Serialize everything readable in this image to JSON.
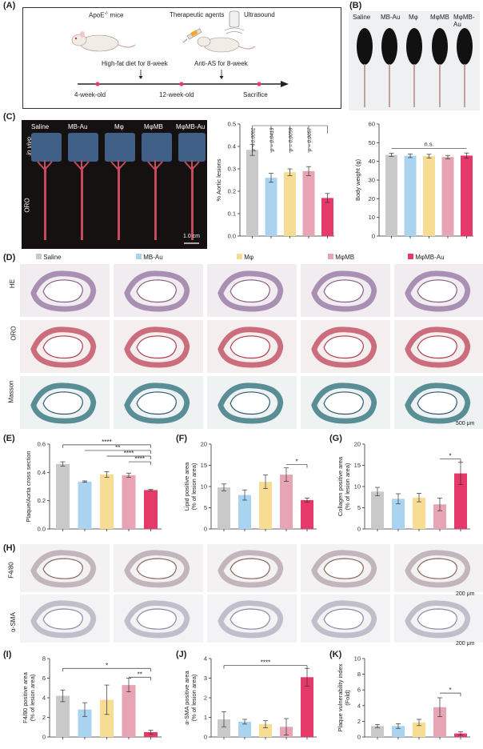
{
  "panels": {
    "A": "(A)",
    "B": "(B)",
    "C": "(C)",
    "D": "(D)",
    "E": "(E)",
    "F": "(F)",
    "G": "(G)",
    "H": "(H)",
    "I": "(I)",
    "J": "(J)",
    "K": "(K)"
  },
  "groups": [
    "Saline",
    "MB-Au",
    "Mφ",
    "MφMB",
    "MφMB-Au"
  ],
  "colors": {
    "Saline": "#c9c9c9",
    "MB-Au": "#a9d3ef",
    "Mφ": "#f7dc93",
    "MφMB": "#e7a4b4",
    "MφMB-Au": "#e5396a"
  },
  "panelA": {
    "mice_label": "ApoE",
    "mice_sup": "-/-",
    "mice_suffix": " mice",
    "agents_label": "Therapeutic agents",
    "ultrasound_label": "Ultrasound",
    "hfd_label": "High-fat diet for 8-week",
    "antias_label": "Anti-AS for 8-week",
    "time_labels": [
      "4-week-old",
      "12-week-old",
      "Sacrifice"
    ]
  },
  "panelB": {
    "labels": [
      "Saline",
      "MB-Au",
      "Mφ",
      "MφMB",
      "MφMB-Au"
    ]
  },
  "panelC": {
    "labels": [
      "Saline",
      "MB-Au",
      "Mφ",
      "MφMB",
      "MφMB-Au"
    ],
    "row_invivo": "in vivo",
    "row_oro": "ORO",
    "scale": "1.0 cm"
  },
  "panelD": {
    "legend": [
      "Saline",
      "MB-Au",
      "Mφ",
      "MφMB",
      "MφMB-Au"
    ],
    "rows": [
      "HE",
      "ORO",
      "Masson"
    ],
    "scale": "500 μm"
  },
  "panelH": {
    "rows": [
      "F4/80",
      "α-SMA"
    ],
    "scale1": "200 μm",
    "scale2": "200 μm"
  },
  "chart_data": [
    {
      "id": "C",
      "type": "bar",
      "ylabel": "% Aortic lesions",
      "ylim": [
        0,
        0.5
      ],
      "yticks": [
        0.0,
        0.1,
        0.2,
        0.3,
        0.4,
        0.5
      ],
      "categories": [
        "Saline",
        "MB-Au",
        "Mφ",
        "MφMB",
        "MφMB-Au"
      ],
      "values": [
        0.385,
        0.26,
        0.285,
        0.29,
        0.17
      ],
      "errors": [
        0.025,
        0.02,
        0.015,
        0.02,
        0.02
      ],
      "pvalues": [
        "p < 0.0001",
        "p = 0.0413",
        "p = 0.0059",
        "p = 0.0057"
      ]
    },
    {
      "id": "C2",
      "type": "bar",
      "ylabel": "Body weight (g)",
      "ylim": [
        0,
        60
      ],
      "yticks": [
        0,
        10,
        20,
        30,
        40,
        50,
        60
      ],
      "categories": [
        "Saline",
        "MB-Au",
        "Mφ",
        "MφMB",
        "MφMB-Au"
      ],
      "values": [
        43.5,
        43,
        42.8,
        42.3,
        43.1
      ],
      "errors": [
        0.8,
        1.0,
        1.0,
        0.9,
        1.4
      ],
      "annotation": "n.s."
    },
    {
      "id": "E",
      "type": "bar",
      "ylabel": "Plaque/Aorta cross section",
      "ylim": [
        0,
        0.6
      ],
      "yticks": [
        0.0,
        0.2,
        0.4,
        0.6
      ],
      "categories": [
        "Saline",
        "MB-Au",
        "Mφ",
        "MφMB",
        "MφMB-Au"
      ],
      "values": [
        0.46,
        0.335,
        0.385,
        0.38,
        0.275
      ],
      "errors": [
        0.015,
        0.005,
        0.02,
        0.015,
        0.005
      ],
      "stars": [
        "****",
        "**",
        "****",
        "****"
      ]
    },
    {
      "id": "F",
      "type": "bar",
      "ylabel": "Lipid positive area (% of lesion area)",
      "ylim": [
        0,
        20
      ],
      "yticks": [
        0,
        5,
        10,
        15,
        20
      ],
      "categories": [
        "Saline",
        "MB-Au",
        "Mφ",
        "MφMB",
        "MφMB-Au"
      ],
      "values": [
        9.8,
        8.0,
        11.1,
        12.8,
        6.8
      ],
      "errors": [
        0.8,
        1.2,
        1.6,
        1.6,
        0.5
      ],
      "stars": [
        "*"
      ]
    },
    {
      "id": "G",
      "type": "bar",
      "ylabel": "Collagen positive area (% of lesion area)",
      "ylim": [
        0,
        20
      ],
      "yticks": [
        0,
        5,
        10,
        15,
        20
      ],
      "categories": [
        "Saline",
        "MB-Au",
        "Mφ",
        "MφMB",
        "MφMB-Au"
      ],
      "values": [
        8.8,
        7.1,
        7.4,
        5.8,
        13.1
      ],
      "errors": [
        1.0,
        1.2,
        1.0,
        1.5,
        2.6
      ],
      "stars": [
        "*"
      ]
    },
    {
      "id": "I",
      "type": "bar",
      "ylabel": "F4/80 positive area (% of lesion area)",
      "ylim": [
        0,
        8
      ],
      "yticks": [
        0,
        2,
        4,
        6,
        8
      ],
      "categories": [
        "Saline",
        "MB-Au",
        "Mφ",
        "MφMB",
        "MφMB-Au"
      ],
      "values": [
        4.2,
        2.8,
        3.8,
        5.3,
        0.5
      ],
      "errors": [
        0.6,
        0.7,
        1.5,
        0.7,
        0.2
      ],
      "stars": [
        "*",
        "**"
      ]
    },
    {
      "id": "J",
      "type": "bar",
      "ylabel": "α-SMA positive area (% of lesion area)",
      "ylim": [
        0,
        4
      ],
      "yticks": [
        0,
        1,
        2,
        3,
        4
      ],
      "categories": [
        "Saline",
        "MB-Au",
        "Mφ",
        "MφMB",
        "MφMB-Au"
      ],
      "values": [
        0.9,
        0.78,
        0.65,
        0.52,
        3.05
      ],
      "errors": [
        0.38,
        0.12,
        0.18,
        0.42,
        0.45
      ],
      "stars": [
        "****"
      ]
    },
    {
      "id": "K",
      "type": "bar",
      "ylabel": "Plaque vulnerability index (Fold)",
      "ylim": [
        0,
        10
      ],
      "yticks": [
        0,
        2,
        4,
        6,
        8,
        10
      ],
      "categories": [
        "Saline",
        "MB-Au",
        "Mφ",
        "MφMB",
        "MφMB-Au"
      ],
      "values": [
        1.4,
        1.4,
        1.85,
        3.8,
        0.45
      ],
      "errors": [
        0.2,
        0.3,
        0.4,
        1.2,
        0.2
      ],
      "stars": [
        "*"
      ]
    }
  ]
}
